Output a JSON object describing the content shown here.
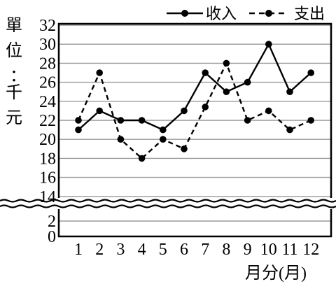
{
  "chart_data": {
    "type": "line",
    "ylabel": "單位：千元",
    "xlabel": "月分(月)",
    "categories": [
      "1",
      "2",
      "3",
      "4",
      "5",
      "6",
      "7",
      "8",
      "9",
      "10",
      "11",
      "12"
    ],
    "y_ticks": [
      0,
      2,
      14,
      16,
      18,
      20,
      22,
      24,
      26,
      28,
      30,
      32
    ],
    "y_break": [
      2,
      14
    ],
    "series": [
      {
        "name": "收入",
        "style": "solid",
        "values": [
          21,
          23,
          22,
          22,
          21,
          23,
          27,
          25,
          26,
          30,
          25,
          27
        ]
      },
      {
        "name": "支出",
        "style": "dashed",
        "values": [
          22,
          27,
          20,
          18,
          20,
          19,
          23.4,
          28,
          22,
          23,
          21,
          22
        ]
      }
    ],
    "grid": true,
    "legend_position": "top-right"
  }
}
